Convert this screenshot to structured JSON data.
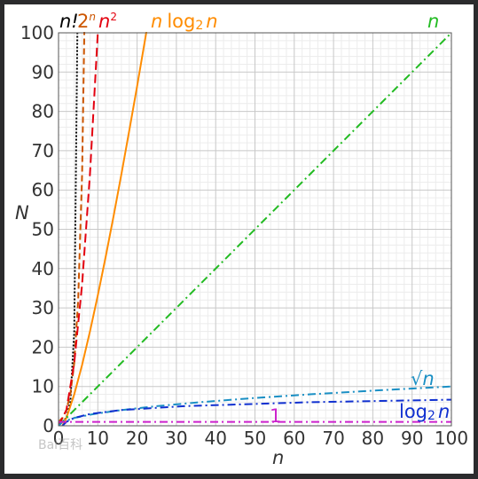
{
  "chart_data": {
    "type": "line",
    "title": "",
    "xlabel": "n",
    "ylabel": "N",
    "xlim": [
      0,
      100
    ],
    "ylim": [
      0,
      100
    ],
    "x_ticks": [
      "0",
      "10",
      "20",
      "30",
      "40",
      "50",
      "60",
      "70",
      "80",
      "90",
      "100"
    ],
    "y_ticks": [
      "0",
      "10",
      "20",
      "30",
      "40",
      "50",
      "60",
      "70",
      "80",
      "90",
      "100"
    ],
    "grid": true,
    "series": [
      {
        "name": "n!",
        "color": "#000000",
        "style": "dotted",
        "x": [
          0,
          1,
          2,
          3,
          4,
          5
        ],
        "y": [
          1,
          1,
          2,
          6,
          24,
          120
        ]
      },
      {
        "name": "2ⁿ",
        "color": "#cc5500",
        "style": "dashed",
        "x": [
          0,
          1,
          2,
          3,
          4,
          5,
          6,
          7
        ],
        "y": [
          1,
          2,
          4,
          8,
          16,
          32,
          64,
          128
        ]
      },
      {
        "name": "n²",
        "color": "#e3000f",
        "style": "longdash",
        "x": [
          0,
          2,
          4,
          6,
          8,
          10,
          10.5
        ],
        "y": [
          0,
          4,
          16,
          36,
          64,
          100,
          110.25
        ]
      },
      {
        "name": "n log₂ n",
        "color": "#ff8c00",
        "style": "solid",
        "x": [
          1,
          2,
          4,
          6,
          8,
          10,
          12,
          14,
          16,
          18,
          20,
          22,
          23
        ],
        "y": [
          0,
          2,
          8,
          15.5,
          24,
          33.2,
          43,
          53.3,
          64,
          75.1,
          86.4,
          98.1,
          104
        ]
      },
      {
        "name": "n",
        "color": "#22bb22",
        "style": "dashdot",
        "x": [
          0,
          100
        ],
        "y": [
          0,
          100
        ]
      },
      {
        "name": "√n",
        "color": "#1a8fc4",
        "style": "dashdot",
        "x": [
          0,
          1,
          4,
          9,
          16,
          25,
          36,
          49,
          64,
          81,
          100
        ],
        "y": [
          0,
          1,
          2,
          3,
          4,
          5,
          6,
          7,
          8,
          9,
          10
        ]
      },
      {
        "name": "log₂ n",
        "color": "#1030d0",
        "style": "dashdot",
        "x": [
          1,
          2,
          4,
          8,
          16,
          32,
          64,
          100
        ],
        "y": [
          0,
          1,
          2,
          3,
          4,
          5,
          6,
          6.64
        ]
      },
      {
        "name": "1",
        "color": "#cc22cc",
        "style": "dashdot",
        "x": [
          0,
          100
        ],
        "y": [
          1,
          1
        ]
      }
    ],
    "labels": {
      "n_factorial": "n!",
      "two_power_n_base": "2",
      "two_power_n_exp": "n",
      "n_squared_base": "n",
      "n_squared_exp": "2",
      "n_log_n_prefix": "n",
      "n_log_n_log": "log",
      "n_log_n_sub": "2",
      "n_log_n_suffix": "n",
      "linear": "n",
      "sqrt_radical": "√",
      "sqrt_n": "n",
      "log_n_log": "log",
      "log_n_sub": "2",
      "log_n_suffix": "n",
      "constant": "1"
    }
  },
  "watermark": "Bai百科"
}
